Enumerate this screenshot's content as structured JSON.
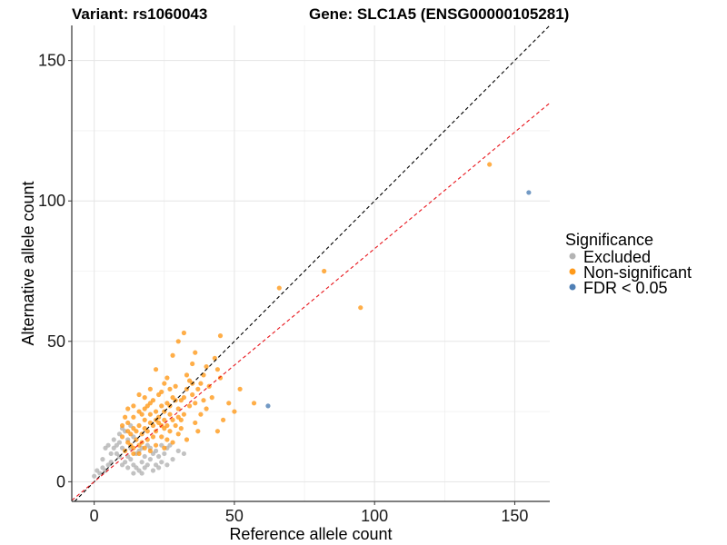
{
  "chart_data": {
    "type": "scatter",
    "title_left": "Variant: rs1060043",
    "title_right": "Gene: SLC1A5 (ENSG00000105281)",
    "xlabel": "Reference allele count",
    "ylabel": "Alternative allele count",
    "xlim": [
      -8,
      162.5
    ],
    "ylim": [
      -7,
      162.5
    ],
    "xticks": [
      0,
      50,
      100,
      150
    ],
    "yticks": [
      0,
      50,
      100,
      150
    ],
    "xtick_labels": [
      "0",
      "50",
      "100",
      "150"
    ],
    "ytick_labels": [
      "0",
      "50",
      "100",
      "150"
    ],
    "minor_grid": [
      25,
      75,
      125
    ],
    "grid": true,
    "legend": {
      "title": "Significance",
      "placement": "right",
      "entries": [
        {
          "label": "Excluded",
          "color": "#b3b3b3"
        },
        {
          "label": "Non-significant",
          "color": "#ff9a1a"
        },
        {
          "label": "FDR < 0.05",
          "color": "#4f7fb5"
        }
      ]
    },
    "reference_lines": [
      {
        "name": "identity",
        "slope": 1.0,
        "intercept": 0,
        "color": "#000000",
        "style": "dashed"
      },
      {
        "name": "fit",
        "slope": 0.83,
        "intercept": 0,
        "color": "#e8141b",
        "style": "dashed"
      }
    ],
    "series": [
      {
        "name": "Excluded",
        "color": "#b3b3b3",
        "points": [
          [
            0,
            2
          ],
          [
            1,
            4
          ],
          [
            2,
            3
          ],
          [
            3,
            5
          ],
          [
            4,
            4
          ],
          [
            3,
            8
          ],
          [
            5,
            6
          ],
          [
            6,
            10
          ],
          [
            7,
            12
          ],
          [
            4,
            12
          ],
          [
            8,
            13
          ],
          [
            9,
            14
          ],
          [
            7,
            15
          ],
          [
            9,
            17
          ],
          [
            10,
            12
          ],
          [
            12,
            9
          ],
          [
            11,
            7
          ],
          [
            13,
            8
          ],
          [
            14,
            6
          ],
          [
            15,
            10
          ],
          [
            15,
            5
          ],
          [
            16,
            4
          ],
          [
            17,
            7
          ],
          [
            18,
            9
          ],
          [
            18,
            5
          ],
          [
            19,
            6
          ],
          [
            20,
            8
          ],
          [
            21,
            4
          ],
          [
            22,
            6
          ],
          [
            23,
            9
          ],
          [
            24,
            7
          ],
          [
            25,
            10
          ],
          [
            26,
            6
          ],
          [
            28,
            8
          ],
          [
            30,
            11
          ],
          [
            32,
            10
          ],
          [
            13,
            12
          ],
          [
            12,
            15
          ],
          [
            11,
            18
          ],
          [
            14,
            16
          ],
          [
            16,
            11
          ],
          [
            20,
            12
          ],
          [
            22,
            11
          ],
          [
            24,
            13
          ],
          [
            27,
            13
          ],
          [
            9,
            9
          ],
          [
            10,
            6
          ],
          [
            6,
            7
          ],
          [
            17,
            12
          ],
          [
            19,
            13
          ],
          [
            14,
            3
          ],
          [
            21,
            10
          ],
          [
            12,
            5
          ],
          [
            8,
            10
          ],
          [
            5,
            13
          ],
          [
            10,
            19
          ],
          [
            13,
            20
          ],
          [
            17,
            3
          ],
          [
            23,
            5
          ],
          [
            26,
            12
          ]
        ]
      },
      {
        "name": "Non-significant",
        "color": "#ff9a1a",
        "points": [
          [
            141,
            113
          ],
          [
            82,
            75
          ],
          [
            66,
            69
          ],
          [
            95,
            62
          ],
          [
            57,
            28
          ],
          [
            52,
            33
          ],
          [
            50,
            25
          ],
          [
            45,
            37
          ],
          [
            44,
            40
          ],
          [
            43,
            44
          ],
          [
            45,
            52
          ],
          [
            36,
            46
          ],
          [
            32,
            53
          ],
          [
            30,
            50
          ],
          [
            28,
            45
          ],
          [
            35,
            42
          ],
          [
            40,
            41
          ],
          [
            38,
            35
          ],
          [
            33,
            38
          ],
          [
            26,
            37
          ],
          [
            22,
            40
          ],
          [
            20,
            33
          ],
          [
            35,
            31
          ],
          [
            42,
            30
          ],
          [
            48,
            28
          ],
          [
            46,
            22
          ],
          [
            40,
            26
          ],
          [
            37,
            18
          ],
          [
            44,
            18
          ],
          [
            31,
            29
          ],
          [
            29,
            34
          ],
          [
            24,
            32
          ],
          [
            18,
            30
          ],
          [
            16,
            31
          ],
          [
            14,
            27
          ],
          [
            12,
            26
          ],
          [
            11,
            23
          ],
          [
            10,
            20
          ],
          [
            10,
            16
          ],
          [
            12,
            14
          ],
          [
            14,
            12
          ],
          [
            16,
            10
          ],
          [
            18,
            12
          ],
          [
            20,
            11
          ],
          [
            22,
            13
          ],
          [
            25,
            12
          ],
          [
            28,
            14
          ],
          [
            30,
            17
          ],
          [
            33,
            15
          ],
          [
            36,
            21
          ],
          [
            38,
            24
          ],
          [
            34,
            27
          ],
          [
            31,
            22
          ],
          [
            27,
            24
          ],
          [
            24,
            27
          ],
          [
            22,
            25
          ],
          [
            20,
            24
          ],
          [
            18,
            22
          ],
          [
            16,
            20
          ],
          [
            14,
            19
          ],
          [
            13,
            17
          ],
          [
            15,
            15
          ],
          [
            17,
            17
          ],
          [
            19,
            18
          ],
          [
            21,
            20
          ],
          [
            23,
            21
          ],
          [
            25,
            19
          ],
          [
            27,
            18
          ],
          [
            29,
            20
          ],
          [
            31,
            19
          ],
          [
            26,
            28
          ],
          [
            28,
            30
          ],
          [
            30,
            26
          ],
          [
            32,
            24
          ],
          [
            20,
            28
          ],
          [
            18,
            26
          ],
          [
            16,
            25
          ],
          [
            14,
            23
          ],
          [
            12,
            21
          ],
          [
            22,
            18
          ],
          [
            24,
            16
          ],
          [
            26,
            15
          ],
          [
            19,
            15
          ],
          [
            21,
            16
          ],
          [
            17,
            14
          ],
          [
            23,
            23
          ],
          [
            25,
            25
          ],
          [
            27,
            27
          ],
          [
            29,
            29
          ],
          [
            33,
            33
          ],
          [
            35,
            35
          ],
          [
            11,
            11
          ],
          [
            13,
            13
          ],
          [
            39,
            29
          ],
          [
            41,
            34
          ],
          [
            25,
            22
          ],
          [
            18,
            19
          ],
          [
            20,
            21
          ],
          [
            22,
            22
          ],
          [
            24,
            20
          ],
          [
            28,
            22
          ],
          [
            15,
            18
          ],
          [
            17,
            24
          ],
          [
            19,
            27
          ],
          [
            21,
            29
          ],
          [
            23,
            31
          ],
          [
            32,
            30
          ],
          [
            34,
            36
          ],
          [
            36,
            28
          ],
          [
            16,
            13
          ],
          [
            14,
            10
          ],
          [
            12,
            18
          ],
          [
            26,
            20
          ],
          [
            30,
            23
          ],
          [
            27,
            33
          ],
          [
            25,
            35
          ],
          [
            37,
            33
          ],
          [
            39,
            38
          ]
        ]
      },
      {
        "name": "FDR < 0.05",
        "color": "#4f7fb5",
        "points": [
          [
            155,
            103
          ],
          [
            62,
            27
          ]
        ]
      }
    ]
  }
}
